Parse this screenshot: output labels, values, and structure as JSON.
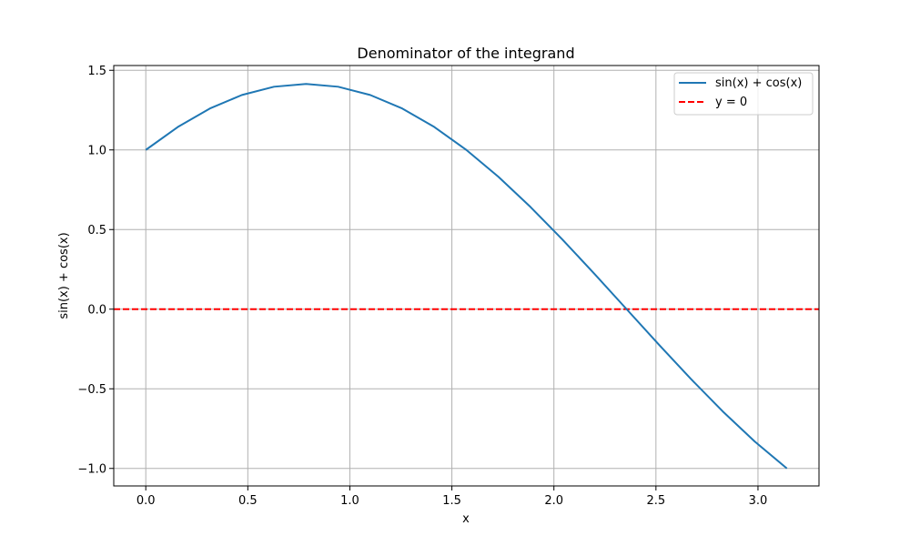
{
  "chart_data": {
    "type": "line",
    "title": "Denominator of the integrand",
    "xlabel": "x",
    "ylabel": "sin(x) + cos(x)",
    "xlim": [
      -0.157,
      3.299
    ],
    "ylim": [
      -1.11,
      1.53
    ],
    "xticks": [
      "0.0",
      "0.5",
      "1.0",
      "1.5",
      "2.0",
      "2.5",
      "3.0"
    ],
    "xtick_values": [
      0,
      0.5,
      1.0,
      1.5,
      2.0,
      2.5,
      3.0
    ],
    "yticks": [
      "−1.0",
      "−0.5",
      "0.0",
      "0.5",
      "1.0",
      "1.5"
    ],
    "ytick_values": [
      -1.0,
      -0.5,
      0.0,
      0.5,
      1.0,
      1.5
    ],
    "grid": true,
    "legend_position": "top-right",
    "series": [
      {
        "name": "sin(x) + cos(x)",
        "color": "#1f77b4",
        "style": "solid",
        "x": [
          0.0,
          0.1571,
          0.3142,
          0.4712,
          0.6283,
          0.7854,
          0.9425,
          1.0996,
          1.2566,
          1.4137,
          1.5708,
          1.7279,
          1.885,
          2.042,
          2.1991,
          2.3562,
          2.5133,
          2.6704,
          2.8274,
          2.9845,
          3.1416
        ],
        "y": [
          1.0,
          1.1441,
          1.2601,
          1.3449,
          1.3968,
          1.4142,
          1.3968,
          1.3449,
          1.2601,
          1.1441,
          1.0,
          0.8313,
          0.642,
          0.437,
          0.2212,
          0.0,
          -0.2212,
          -0.437,
          -0.642,
          -0.8313,
          -1.0
        ]
      },
      {
        "name": "y = 0",
        "color": "#ff0000",
        "style": "dashed",
        "y_constant": 0
      }
    ]
  }
}
